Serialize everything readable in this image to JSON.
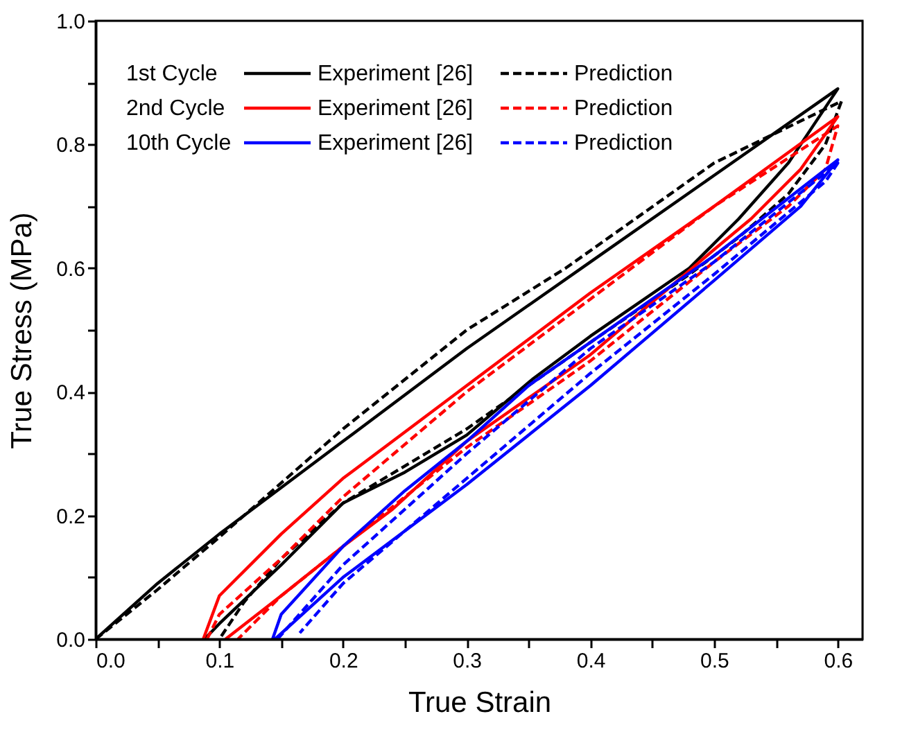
{
  "chart_data": {
    "type": "line",
    "xlabel": "True Strain",
    "ylabel": "True Stress (MPa)",
    "xlim": [
      0,
      0.62
    ],
    "ylim": [
      0,
      1.0
    ],
    "xticks": [
      {
        "value": 0,
        "label": "0.0"
      },
      {
        "value": 0.05,
        "label": null
      },
      {
        "value": 0.1,
        "label": "0.1"
      },
      {
        "value": 0.15,
        "label": null
      },
      {
        "value": 0.2,
        "label": "0.2"
      },
      {
        "value": 0.25,
        "label": null
      },
      {
        "value": 0.3,
        "label": "0.3"
      },
      {
        "value": 0.35,
        "label": null
      },
      {
        "value": 0.4,
        "label": "0.4"
      },
      {
        "value": 0.45,
        "label": null
      },
      {
        "value": 0.5,
        "label": "0.5"
      },
      {
        "value": 0.55,
        "label": null
      },
      {
        "value": 0.6,
        "label": "0.6"
      }
    ],
    "yticks": [
      {
        "value": 0,
        "label": "0.0"
      },
      {
        "value": 0.1,
        "label": null
      },
      {
        "value": 0.2,
        "label": "0.2"
      },
      {
        "value": 0.3,
        "label": null
      },
      {
        "value": 0.4,
        "label": "0.4"
      },
      {
        "value": 0.5,
        "label": null
      },
      {
        "value": 0.6,
        "label": "0.6"
      },
      {
        "value": 0.7,
        "label": null
      },
      {
        "value": 0.8,
        "label": "0.8"
      },
      {
        "value": 0.9,
        "label": null
      },
      {
        "value": 1.0,
        "label": "1.0"
      }
    ],
    "grid": false,
    "legend": "top left",
    "marker": "none",
    "annotations": [
      "1st   Cycle",
      "2nd  Cycle",
      "10th Cycle"
    ],
    "series": [
      {
        "name": "Experiment [26]",
        "color": "#000000",
        "line_style": "solid",
        "x": [
          0,
          0.05,
          0.1,
          0.2,
          0.3,
          0.4,
          0.5,
          0.6,
          0.58,
          0.56,
          0.52,
          0.48,
          0.4,
          0.353,
          0.3,
          0.25,
          0.2,
          0.15,
          0.1,
          0.088
        ],
        "values": [
          0,
          0.09,
          0.17,
          0.32,
          0.47,
          0.61,
          0.75,
          0.89,
          0.83,
          0.77,
          0.68,
          0.6,
          0.49,
          0.42,
          0.33,
          0.27,
          0.22,
          0.12,
          0.025,
          0
        ]
      },
      {
        "name": "Prediction",
        "color": "#000000",
        "line_style": "dashed",
        "x": [
          0,
          0.05,
          0.1,
          0.2,
          0.3,
          0.38,
          0.5,
          0.603,
          0.59,
          0.56,
          0.52,
          0.48,
          0.4,
          0.3,
          0.2,
          0.15,
          0.12,
          0.1
        ],
        "values": [
          0,
          0.08,
          0.165,
          0.34,
          0.5,
          0.6,
          0.77,
          0.87,
          0.8,
          0.72,
          0.65,
          0.59,
          0.48,
          0.34,
          0.22,
          0.13,
          0.06,
          0
        ]
      },
      {
        "name": "Experiment [26]",
        "color": "#ff0000",
        "line_style": "solid",
        "x": [
          0.087,
          0.1,
          0.15,
          0.2,
          0.3,
          0.4,
          0.5,
          0.6,
          0.57,
          0.53,
          0.5,
          0.4,
          0.3,
          0.24,
          0.2,
          0.15,
          0.105
        ],
        "values": [
          0,
          0.07,
          0.17,
          0.26,
          0.41,
          0.56,
          0.7,
          0.845,
          0.76,
          0.68,
          0.63,
          0.46,
          0.32,
          0.21,
          0.15,
          0.07,
          0
        ]
      },
      {
        "name": "Prediction",
        "color": "#ff0000",
        "line_style": "dashed",
        "x": [
          0.09,
          0.1,
          0.15,
          0.2,
          0.3,
          0.4,
          0.5,
          0.6,
          0.59,
          0.56,
          0.5,
          0.4,
          0.3,
          0.2,
          0.15,
          0.115
        ],
        "values": [
          0,
          0.04,
          0.13,
          0.23,
          0.4,
          0.55,
          0.7,
          0.83,
          0.76,
          0.7,
          0.61,
          0.45,
          0.31,
          0.15,
          0.07,
          0
        ]
      },
      {
        "name": "Experiment [26]",
        "color": "#0000ff",
        "line_style": "solid",
        "x": [
          0.143,
          0.15,
          0.2,
          0.25,
          0.3,
          0.35,
          0.4,
          0.5,
          0.6,
          0.57,
          0.5,
          0.4,
          0.3,
          0.2,
          0.145
        ],
        "values": [
          0,
          0.04,
          0.15,
          0.24,
          0.32,
          0.41,
          0.48,
          0.62,
          0.775,
          0.7,
          0.58,
          0.41,
          0.25,
          0.1,
          0
        ]
      },
      {
        "name": "Prediction",
        "color": "#0000ff",
        "line_style": "dashed",
        "x": [
          0.147,
          0.2,
          0.3,
          0.4,
          0.5,
          0.6,
          0.59,
          0.5,
          0.4,
          0.3,
          0.2,
          0.165
        ],
        "values": [
          0,
          0.12,
          0.3,
          0.47,
          0.61,
          0.77,
          0.74,
          0.59,
          0.43,
          0.26,
          0.09,
          0.01
        ]
      }
    ]
  }
}
